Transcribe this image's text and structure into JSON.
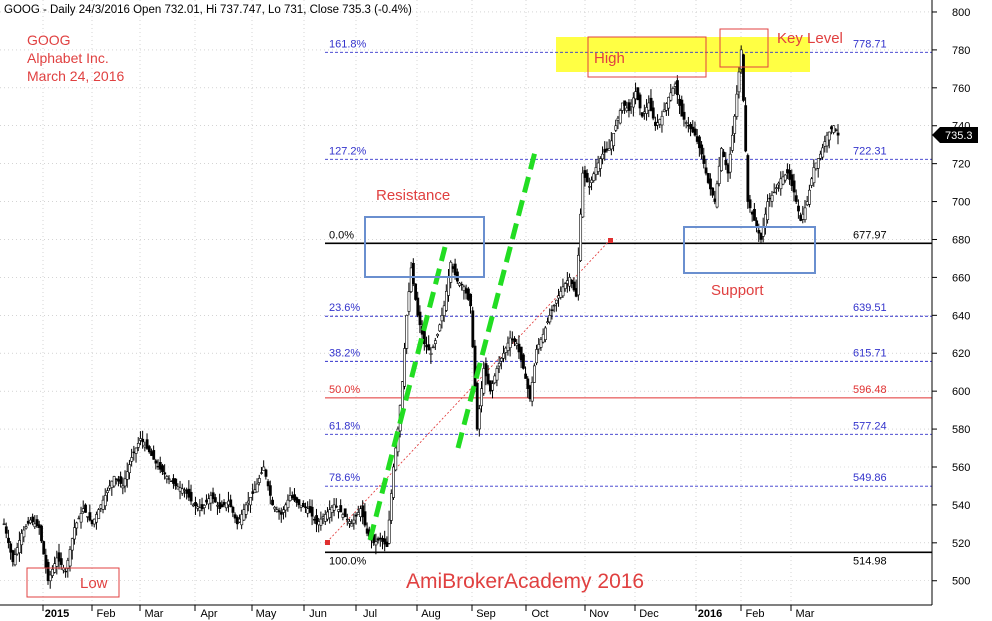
{
  "header": "GOOG - Daily 24/3/2016 Open 732.01, Hi 737.747, Lo 731, Close 735.3 (-0.4%)",
  "info_lines": [
    "GOOG",
    "Alphabet Inc.",
    "March 24, 2016"
  ],
  "watermark": "AmiBrokerAcademy  2016",
  "last_price": "735.3",
  "colors": {
    "candle": "#000000",
    "fib_line": "#3333cc",
    "fib_mid": "#e03030",
    "annotation": "#e04040",
    "box_blue": "#6a8fcf",
    "trend_green": "#22dd22",
    "highlight_yellow": "#ffff44"
  },
  "annotations": [
    {
      "id": "resistance",
      "text": "Resistance"
    },
    {
      "id": "support",
      "text": "Support"
    },
    {
      "id": "high",
      "text": "High"
    },
    {
      "id": "key-level",
      "text": "Key Level"
    },
    {
      "id": "low",
      "text": "Low"
    }
  ],
  "chart_data": {
    "type": "candlestick",
    "y_ticks": [
      500,
      520,
      540,
      560,
      580,
      600,
      620,
      640,
      660,
      680,
      700,
      720,
      740,
      760,
      780,
      800
    ],
    "ylim": [
      490,
      805
    ],
    "x_labels": [
      "2015",
      "Feb",
      "Mar",
      "Apr",
      "May",
      "Jun",
      "Jul",
      "Aug",
      "Sep",
      "Oct",
      "Nov",
      "Dec",
      "2016",
      "Feb",
      "Mar"
    ],
    "x_label_bold": [
      "2015",
      "2016"
    ],
    "fib_levels": [
      {
        "pct": "161.8%",
        "value": 778.71
      },
      {
        "pct": "127.2%",
        "value": 722.31
      },
      {
        "pct": "0.0%",
        "value": 677.97
      },
      {
        "pct": "23.6%",
        "value": 639.51
      },
      {
        "pct": "38.2%",
        "value": 615.71
      },
      {
        "pct": "50.0%",
        "value": 596.48
      },
      {
        "pct": "61.8%",
        "value": 577.24
      },
      {
        "pct": "78.6%",
        "value": 549.86
      },
      {
        "pct": "100.0%",
        "value": 514.98
      }
    ],
    "price_waypoints": [
      [
        0,
        530
      ],
      [
        4,
        510
      ],
      [
        8,
        525
      ],
      [
        12,
        532
      ],
      [
        16,
        528
      ],
      [
        20,
        500
      ],
      [
        24,
        512
      ],
      [
        28,
        505
      ],
      [
        32,
        528
      ],
      [
        36,
        538
      ],
      [
        40,
        530
      ],
      [
        46,
        545
      ],
      [
        50,
        555
      ],
      [
        54,
        550
      ],
      [
        58,
        565
      ],
      [
        62,
        575
      ],
      [
        66,
        568
      ],
      [
        70,
        560
      ],
      [
        74,
        555
      ],
      [
        78,
        550
      ],
      [
        82,
        548
      ],
      [
        86,
        540
      ],
      [
        90,
        538
      ],
      [
        94,
        545
      ],
      [
        98,
        538
      ],
      [
        102,
        542
      ],
      [
        106,
        530
      ],
      [
        110,
        540
      ],
      [
        114,
        548
      ],
      [
        118,
        560
      ],
      [
        122,
        540
      ],
      [
        126,
        535
      ],
      [
        130,
        545
      ],
      [
        134,
        540
      ],
      [
        138,
        538
      ],
      [
        142,
        530
      ],
      [
        146,
        535
      ],
      [
        150,
        540
      ],
      [
        154,
        535
      ],
      [
        158,
        530
      ],
      [
        162,
        538
      ],
      [
        165,
        525
      ],
      [
        168,
        520
      ],
      [
        171,
        522
      ],
      [
        174,
        518
      ],
      [
        177,
        560
      ],
      [
        179,
        580
      ],
      [
        181,
        605
      ],
      [
        183,
        640
      ],
      [
        185,
        665
      ],
      [
        188,
        640
      ],
      [
        191,
        625
      ],
      [
        194,
        620
      ],
      [
        197,
        630
      ],
      [
        200,
        645
      ],
      [
        203,
        668
      ],
      [
        206,
        658
      ],
      [
        209,
        655
      ],
      [
        212,
        645
      ],
      [
        215,
        580
      ],
      [
        218,
        612
      ],
      [
        221,
        600
      ],
      [
        224,
        612
      ],
      [
        227,
        620
      ],
      [
        230,
        628
      ],
      [
        233,
        625
      ],
      [
        236,
        612
      ],
      [
        239,
        596
      ],
      [
        242,
        622
      ],
      [
        245,
        630
      ],
      [
        248,
        640
      ],
      [
        251,
        648
      ],
      [
        254,
        655
      ],
      [
        257,
        660
      ],
      [
        260,
        650
      ],
      [
        263,
        715
      ],
      [
        266,
        708
      ],
      [
        269,
        718
      ],
      [
        272,
        725
      ],
      [
        275,
        728
      ],
      [
        278,
        740
      ],
      [
        281,
        752
      ],
      [
        284,
        748
      ],
      [
        287,
        758
      ],
      [
        290,
        745
      ],
      [
        293,
        752
      ],
      [
        296,
        740
      ],
      [
        299,
        745
      ],
      [
        302,
        755
      ],
      [
        305,
        762
      ],
      [
        308,
        745
      ],
      [
        311,
        740
      ],
      [
        314,
        735
      ],
      [
        317,
        725
      ],
      [
        320,
        710
      ],
      [
        323,
        700
      ],
      [
        326,
        728
      ],
      [
        329,
        715
      ],
      [
        332,
        745
      ],
      [
        335,
        780
      ],
      [
        338,
        700
      ],
      [
        341,
        690
      ],
      [
        344,
        680
      ],
      [
        347,
        700
      ],
      [
        350,
        705
      ],
      [
        353,
        712
      ],
      [
        356,
        715
      ],
      [
        359,
        705
      ],
      [
        362,
        690
      ],
      [
        365,
        700
      ],
      [
        368,
        718
      ],
      [
        371,
        725
      ],
      [
        374,
        735
      ],
      [
        377,
        740
      ],
      [
        379,
        735
      ]
    ]
  }
}
